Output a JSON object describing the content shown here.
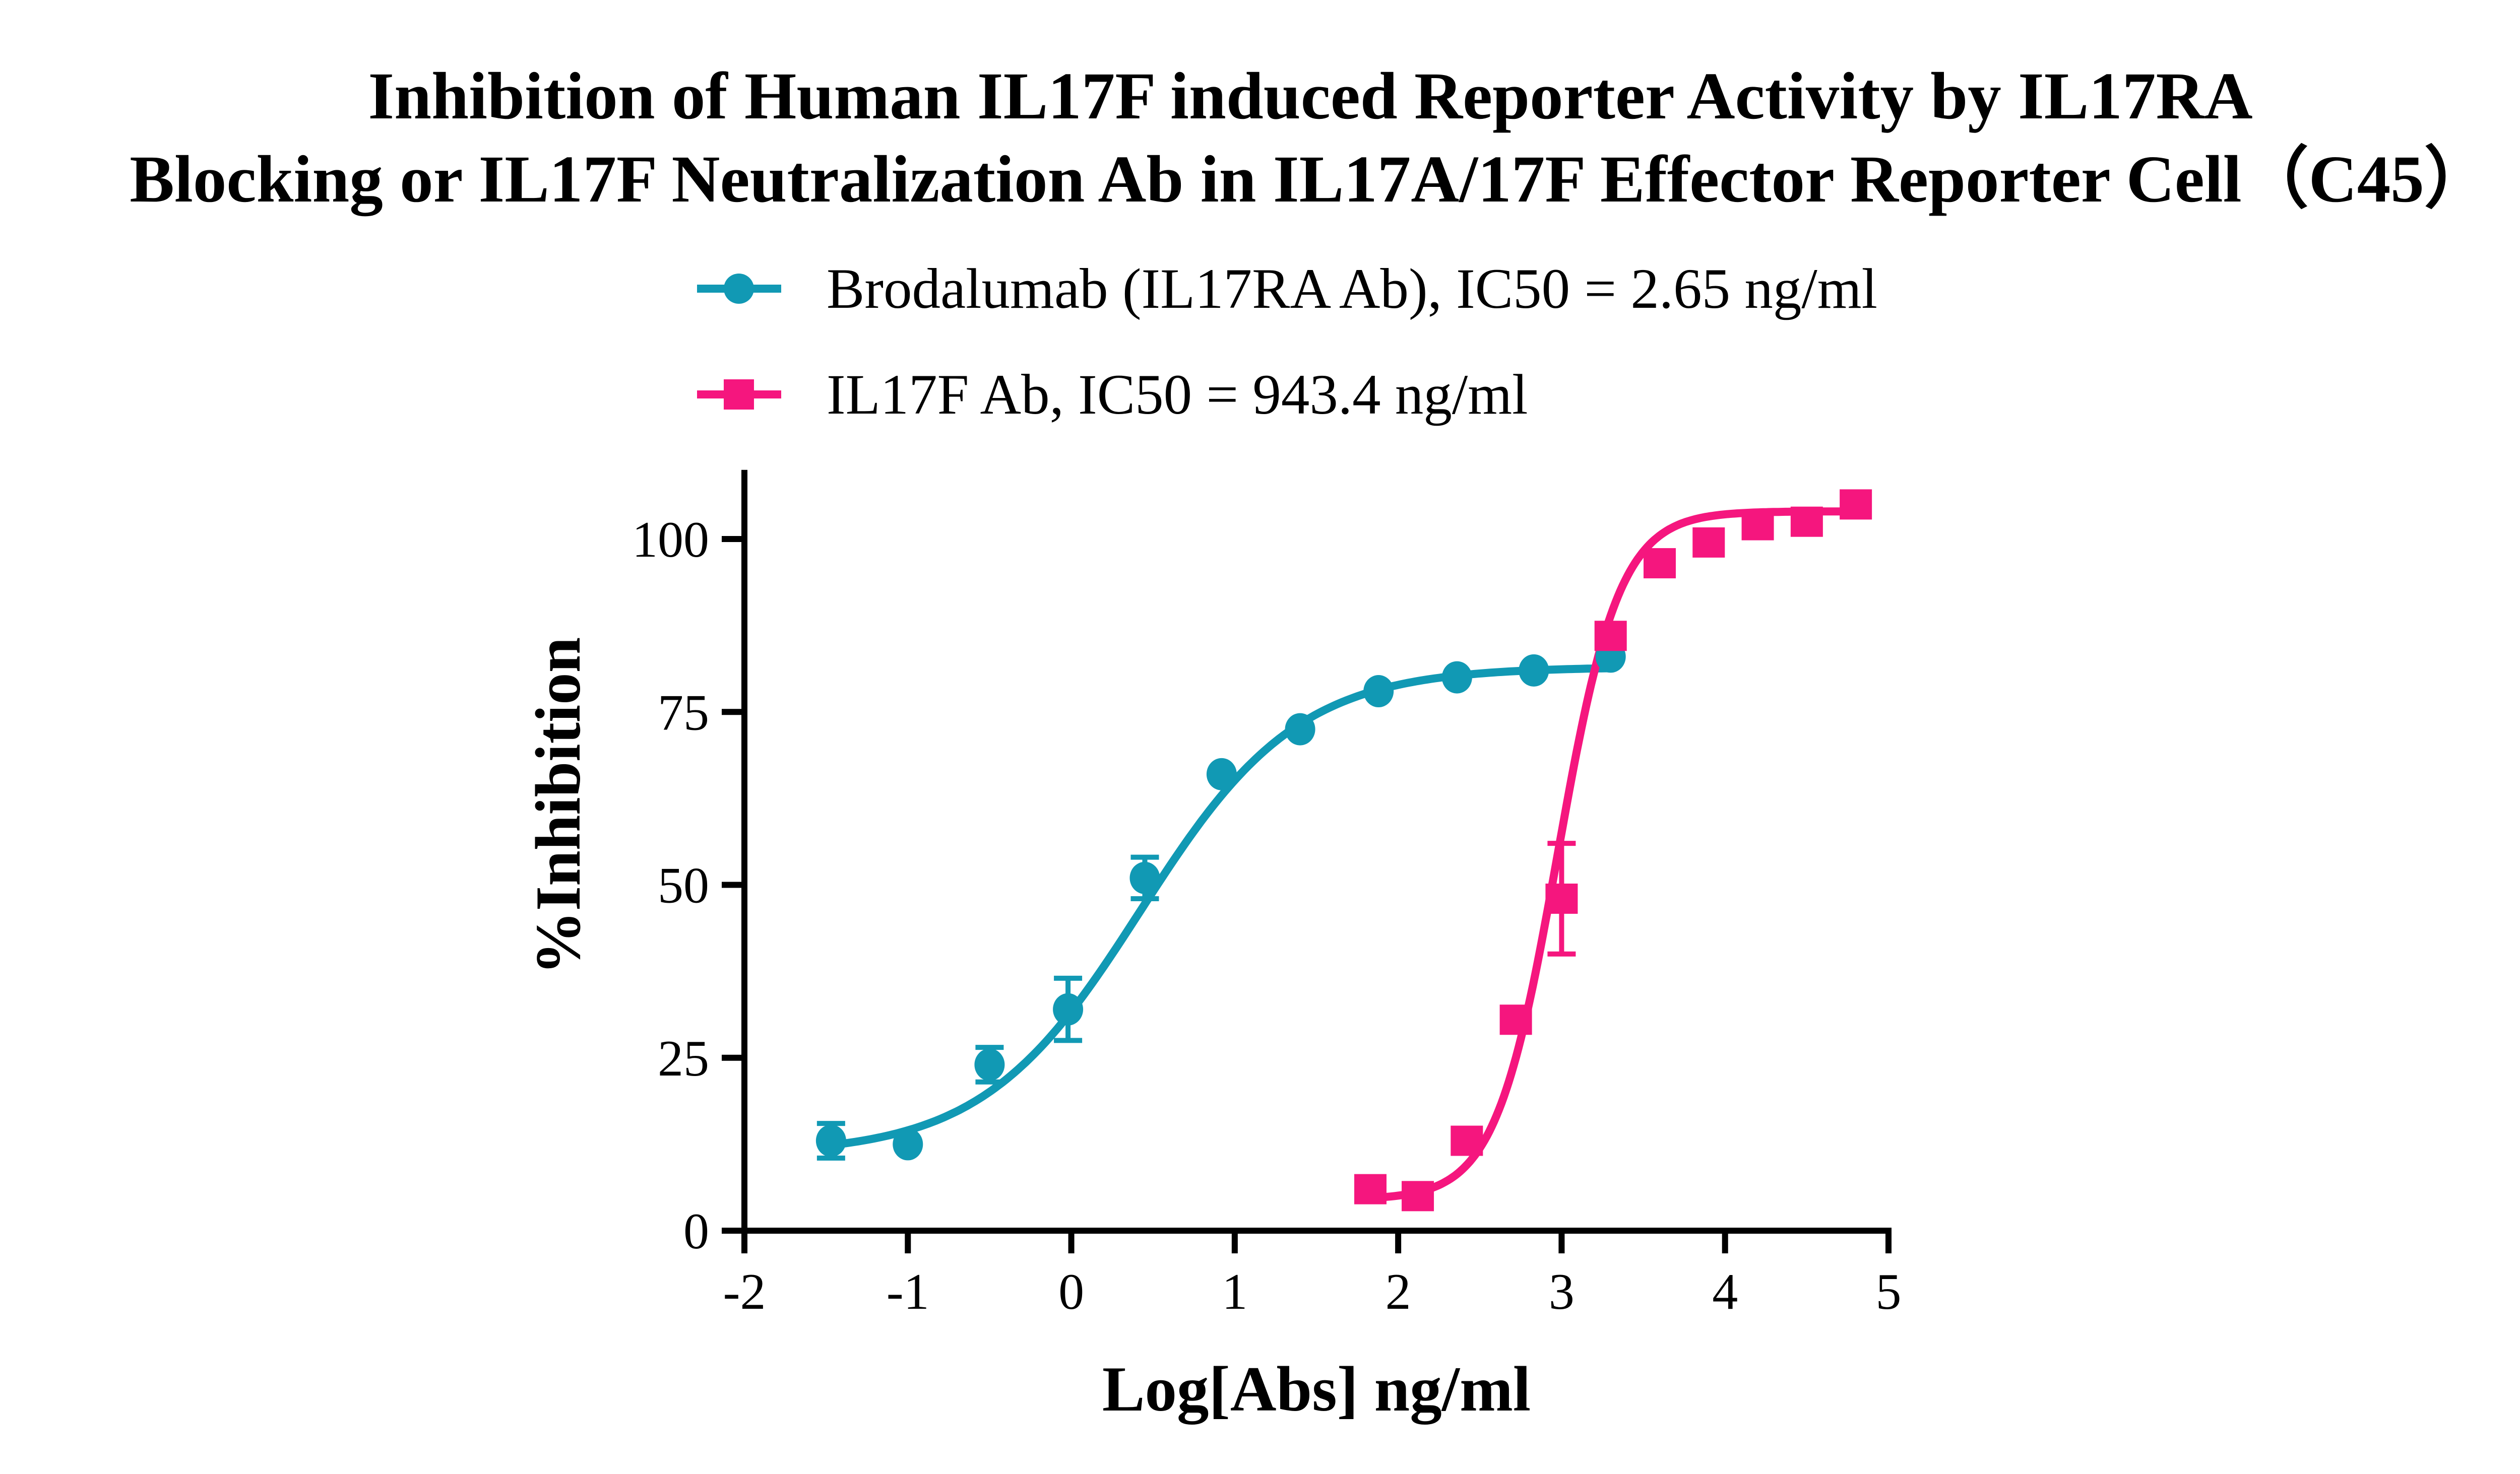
{
  "chart_data": {
    "type": "scatter",
    "title_lines": [
      "Inhibition of Human IL17F induced Reporter Activity by IL17RA",
      "Blocking or IL17F Neutralization Ab in IL17A/17F Effector Reporter Cell（C45）"
    ],
    "xlabel": "Log[Abs] ng/ml",
    "ylabel": "%Inhibition",
    "xlim": [
      -2,
      5
    ],
    "ylim": [
      0,
      110
    ],
    "xticks": [
      "-2",
      "-1",
      "0",
      "1",
      "2",
      "3",
      "4",
      "5"
    ],
    "yticks": [
      "0",
      "25",
      "50",
      "75",
      "100"
    ],
    "grid": false,
    "legend_position": "top",
    "series": [
      {
        "name": "Brodalumab (IL17RA Ab), IC50 = 2.65 ng/ml",
        "color": "#1199B4",
        "marker": "circle",
        "x": [
          -1.47,
          -1.0,
          -0.5,
          -0.02,
          0.45,
          0.92,
          1.4,
          1.88,
          2.36,
          2.83,
          3.3
        ],
        "y": [
          13,
          12.5,
          24,
          32,
          51,
          66,
          72.5,
          78,
          80,
          81,
          83
        ],
        "err": [
          2.5,
          0,
          2.5,
          4.5,
          3,
          0,
          0,
          0,
          0,
          0,
          0
        ]
      },
      {
        "name": "IL17F Ab, IC50 = 943.4 ng/ml",
        "color": "#F5167E",
        "marker": "square",
        "x": [
          1.83,
          2.12,
          2.42,
          2.72,
          3.0,
          3.3,
          3.6,
          3.9,
          4.2,
          4.5,
          4.8
        ],
        "y": [
          6,
          5,
          13,
          30.5,
          48,
          86,
          96.5,
          99.5,
          102,
          102.5,
          105
        ],
        "err": [
          0,
          0,
          0,
          0,
          8,
          0,
          0,
          0,
          0,
          0,
          0
        ]
      }
    ]
  }
}
